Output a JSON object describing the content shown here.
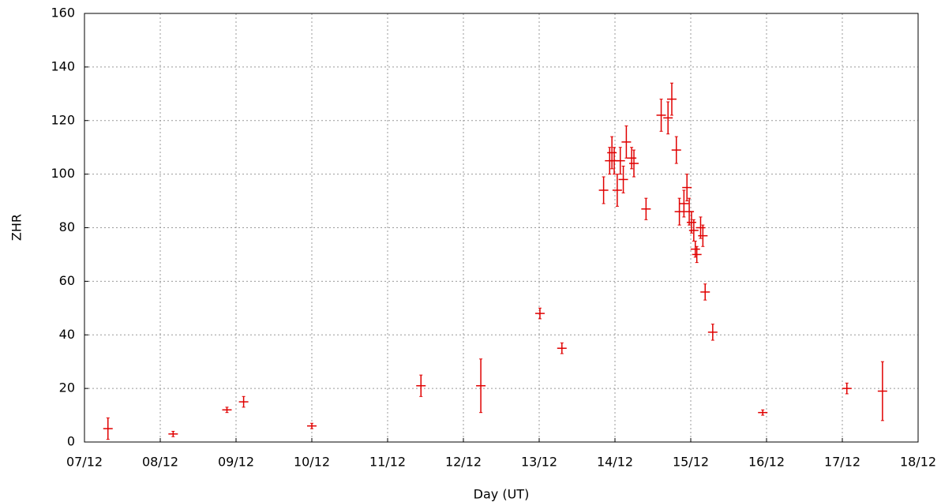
{
  "chart_data": {
    "type": "errorbar",
    "xlabel": "Day (UT)",
    "ylabel": "ZHR",
    "x": [
      7.31,
      8.17,
      8.88,
      9.1,
      10.0,
      11.44,
      12.23,
      13.01,
      13.3,
      13.85,
      13.93,
      13.96,
      13.99,
      14.03,
      14.07,
      14.11,
      14.15,
      14.22,
      14.25,
      14.41,
      14.61,
      14.7,
      14.75,
      14.81,
      14.85,
      14.91,
      14.95,
      14.98,
      15.01,
      15.04,
      15.06,
      15.08,
      15.13,
      15.16,
      15.19,
      15.29,
      15.95,
      17.06,
      17.53
    ],
    "values": [
      5,
      3,
      12,
      15,
      6,
      21,
      21,
      48,
      35,
      94,
      105,
      108,
      105,
      94,
      105,
      98,
      112,
      106,
      104,
      87,
      122,
      121,
      128,
      109,
      86,
      89,
      95,
      86,
      82,
      79,
      72,
      70,
      80,
      77,
      56,
      41,
      11,
      20,
      19
    ],
    "errors": [
      4,
      1,
      1,
      2,
      1,
      4,
      10,
      2,
      2,
      5,
      5,
      6,
      5,
      6,
      5,
      5,
      6,
      4,
      5,
      4,
      6,
      6,
      6,
      5,
      5,
      5,
      5,
      5,
      4,
      4,
      3,
      3,
      4,
      4,
      3,
      3,
      1,
      2,
      11
    ],
    "color": "#e00000",
    "xlim": [
      7,
      18
    ],
    "xticks": [
      {
        "value": 7,
        "label": "07/12"
      },
      {
        "value": 8,
        "label": "08/12"
      },
      {
        "value": 9,
        "label": "09/12"
      },
      {
        "value": 10,
        "label": "10/12"
      },
      {
        "value": 11,
        "label": "11/12"
      },
      {
        "value": 12,
        "label": "12/12"
      },
      {
        "value": 13,
        "label": "13/12"
      },
      {
        "value": 14,
        "label": "14/12"
      },
      {
        "value": 15,
        "label": "15/12"
      },
      {
        "value": 16,
        "label": "16/12"
      },
      {
        "value": 17,
        "label": "17/12"
      },
      {
        "value": 18,
        "label": "18/12"
      }
    ],
    "ylim": [
      0,
      160
    ],
    "yticks": [
      0,
      20,
      40,
      60,
      80,
      100,
      120,
      140,
      160
    ],
    "grid": true
  }
}
